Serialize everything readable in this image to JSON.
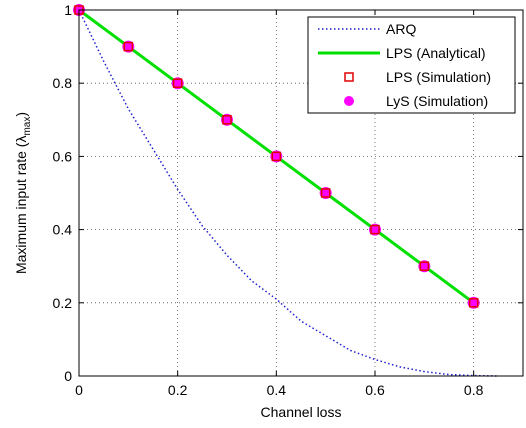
{
  "chart_data": {
    "type": "line",
    "xlabel": "Channel loss",
    "ylabel": "Maximum input rate (λ",
    "ylabel_sub": "max",
    "ylabel_close": ")",
    "xlim": [
      0,
      0.9
    ],
    "ylim": [
      0,
      1
    ],
    "x_ticks": [
      0,
      0.2,
      0.4,
      0.6,
      0.8
    ],
    "x_tick_labels": [
      "0",
      "0.2",
      "0.4",
      "0.6",
      "0.8"
    ],
    "y_ticks": [
      0,
      0.2,
      0.4,
      0.6,
      0.8,
      1
    ],
    "y_tick_labels": [
      "0",
      "0.2",
      "0.4",
      "0.6",
      "0.8",
      "1"
    ],
    "grid": "dotted",
    "legend_position": "top-right",
    "series": [
      {
        "name": "ARQ",
        "style": "dotted",
        "color": "#1f1fd6",
        "x": [
          0,
          0.05,
          0.1,
          0.15,
          0.2,
          0.25,
          0.3,
          0.35,
          0.4,
          0.45,
          0.5,
          0.55,
          0.6,
          0.65,
          0.7,
          0.75,
          0.8,
          0.85
        ],
        "y": [
          1,
          0.86,
          0.73,
          0.62,
          0.51,
          0.41,
          0.33,
          0.26,
          0.21,
          0.15,
          0.11,
          0.07,
          0.045,
          0.025,
          0.012,
          0.004,
          0.001,
          0
        ]
      },
      {
        "name": "LPS (Analytical)",
        "style": "solid",
        "color": "#00e000",
        "x": [
          0,
          0.1,
          0.2,
          0.3,
          0.4,
          0.5,
          0.6,
          0.7,
          0.8
        ],
        "y": [
          1,
          0.9,
          0.8,
          0.7,
          0.6,
          0.5,
          0.4,
          0.3,
          0.2
        ]
      },
      {
        "name": "LPS (Simulation)",
        "style": "square-marker",
        "color": "#e00000",
        "x": [
          0,
          0.1,
          0.2,
          0.3,
          0.4,
          0.5,
          0.6,
          0.7,
          0.8
        ],
        "y": [
          1,
          0.9,
          0.8,
          0.7,
          0.6,
          0.5,
          0.4,
          0.3,
          0.2
        ]
      },
      {
        "name": "LyS (Simulation)",
        "style": "circle-marker",
        "color": "#ff00ff",
        "x": [
          0,
          0.1,
          0.2,
          0.3,
          0.4,
          0.5,
          0.6,
          0.7,
          0.8
        ],
        "y": [
          1,
          0.9,
          0.8,
          0.7,
          0.6,
          0.5,
          0.4,
          0.3,
          0.2
        ]
      }
    ]
  }
}
